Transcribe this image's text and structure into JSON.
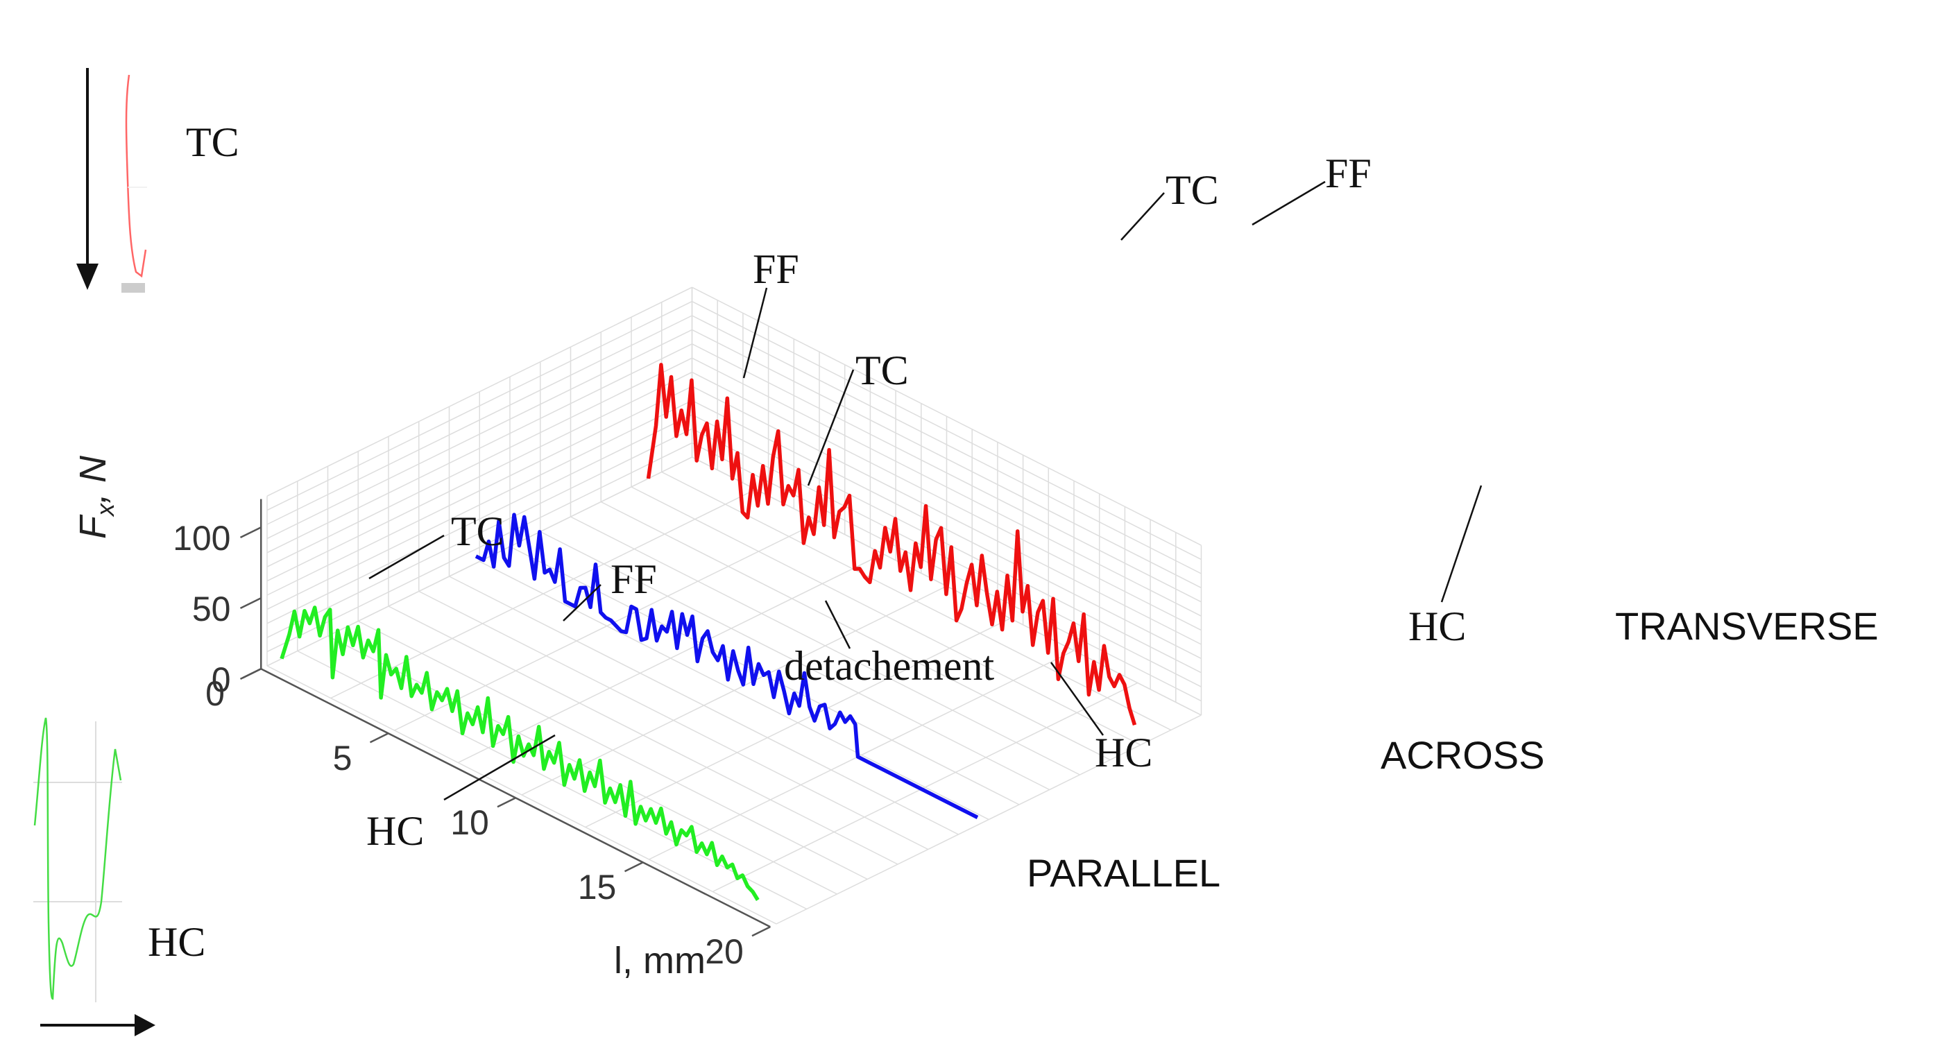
{
  "chart_data": {
    "type": "line",
    "projection": "3d-waterfall",
    "xlabel": "l, mm",
    "ylabel": "F",
    "ylabel_subscript": "x",
    "ylabel_unit": ", N",
    "x_ticks": [
      "0",
      "5",
      "10",
      "15",
      "20"
    ],
    "y_ticks": [
      "0",
      "50",
      "100"
    ],
    "xlim": [
      0,
      20
    ],
    "ylim": [
      0,
      120
    ],
    "grid": true,
    "series": [
      {
        "name": "PARALLEL",
        "color": "#22ee22",
        "x": [
          0.0,
          0.3,
          0.5,
          0.7,
          0.9,
          1.1,
          1.3,
          1.5,
          1.7,
          1.9,
          2.0,
          2.2,
          2.4,
          2.6,
          2.8,
          3.0,
          3.2,
          3.4,
          3.6,
          3.8,
          3.9,
          4.1,
          4.3,
          4.5,
          4.7,
          4.9,
          5.1,
          5.3,
          5.5,
          5.7,
          5.9,
          6.1,
          6.3,
          6.5,
          6.7,
          6.9,
          7.1,
          7.3,
          7.5,
          7.7,
          7.9,
          8.1,
          8.3,
          8.5,
          8.7,
          8.9,
          9.1,
          9.3,
          9.5,
          9.7,
          9.9,
          10.1,
          10.3,
          10.5,
          10.7,
          10.9,
          11.1,
          11.3,
          11.5,
          11.7,
          11.9,
          12.1,
          12.3,
          12.5,
          12.7,
          12.9,
          13.1,
          13.3,
          13.5,
          13.7,
          13.9,
          14.1,
          14.3,
          14.5,
          14.7,
          14.9,
          15.1,
          15.3,
          15.5,
          15.7,
          15.9,
          16.1,
          16.3,
          16.5,
          16.7,
          16.9,
          17.1,
          17.3,
          17.5,
          17.7,
          17.9,
          18.1,
          18.3,
          18.5,
          18.7
        ],
        "values": [
          0,
          20,
          38,
          22,
          42,
          35,
          48,
          30,
          45,
          52,
          5,
          40,
          25,
          46,
          35,
          50,
          30,
          44,
          38,
          55,
          8,
          40,
          28,
          34,
          22,
          46,
          20,
          30,
          26,
          42,
          18,
          32,
          28,
          38,
          24,
          40,
          12,
          28,
          22,
          36,
          20,
          46,
          14,
          30,
          26,
          40,
          10,
          30,
          18,
          28,
          22,
          44,
          16,
          30,
          24,
          40,
          12,
          28,
          20,
          35,
          15,
          30,
          22,
          42,
          14,
          26,
          18,
          32,
          12,
          38,
          10,
          24,
          16,
          26,
          18,
          30,
          14,
          24,
          10,
          22,
          20,
          28,
          12,
          20,
          14,
          24,
          10,
          18,
          12,
          16,
          8,
          12,
          6,
          4,
          0
        ]
      },
      {
        "name": "ACROSS",
        "color": "#1010ee",
        "x": [
          0.0,
          0.3,
          0.5,
          0.7,
          0.9,
          1.1,
          1.3,
          1.5,
          1.7,
          1.9,
          2.1,
          2.3,
          2.5,
          2.7,
          2.9,
          3.1,
          3.3,
          3.5,
          3.7,
          3.9,
          4.1,
          4.3,
          4.5,
          4.7,
          4.9,
          5.1,
          5.3,
          5.5,
          5.7,
          5.9,
          6.1,
          6.3,
          6.5,
          6.7,
          6.9,
          7.1,
          7.3,
          7.5,
          7.7,
          7.9,
          8.1,
          8.3,
          8.5,
          8.7,
          8.9,
          9.1,
          9.3,
          9.5,
          9.7,
          9.9,
          10.1,
          10.3,
          10.5,
          10.7,
          10.9,
          11.1,
          11.3,
          11.5,
          11.7,
          11.9,
          12.1,
          12.3,
          12.5,
          12.7,
          12.9,
          13.1,
          13.3,
          13.5,
          13.7,
          13.9,
          14.1,
          14.3,
          14.5,
          14.7,
          14.9,
          15.0,
          15.5,
          16.0,
          17.0,
          18.0,
          19.0,
          19.7
        ],
        "values": [
          5,
          5,
          20,
          4,
          38,
          14,
          10,
          48,
          28,
          50,
          30,
          10,
          45,
          18,
          22,
          15,
          40,
          5,
          5,
          5,
          20,
          22,
          10,
          42,
          10,
          8,
          8,
          6,
          4,
          5,
          25,
          25,
          5,
          8,
          30,
          10,
          22,
          20,
          36,
          12,
          38,
          25,
          40,
          10,
          28,
          35,
          22,
          18,
          30,
          8,
          30,
          18,
          10,
          38,
          14,
          30,
          24,
          28,
          12,
          32,
          20,
          6,
          22,
          15,
          40,
          18,
          10,
          22,
          25,
          10,
          15,
          25,
          20,
          26,
          22,
          0,
          0,
          0,
          0,
          0,
          0,
          0
        ]
      },
      {
        "name": "TRANSVERSE",
        "color": "#ee1010",
        "x": [
          0.0,
          0.3,
          0.5,
          0.7,
          0.9,
          1.1,
          1.3,
          1.5,
          1.7,
          1.9,
          2.1,
          2.3,
          2.5,
          2.7,
          2.9,
          3.1,
          3.3,
          3.5,
          3.7,
          3.9,
          4.1,
          4.3,
          4.5,
          4.7,
          4.9,
          5.1,
          5.3,
          5.5,
          5.7,
          5.9,
          6.1,
          6.3,
          6.5,
          6.7,
          6.9,
          7.1,
          7.3,
          7.5,
          7.7,
          7.9,
          8.1,
          8.3,
          8.5,
          8.7,
          8.9,
          9.1,
          9.3,
          9.5,
          9.7,
          9.9,
          10.1,
          10.3,
          10.5,
          10.7,
          10.9,
          11.1,
          11.3,
          11.5,
          11.7,
          11.9,
          12.1,
          12.3,
          12.5,
          12.7,
          12.9,
          13.1,
          13.3,
          13.5,
          13.7,
          13.9,
          14.1,
          14.3,
          14.5,
          14.7,
          14.9,
          15.1,
          15.3,
          15.5,
          15.7,
          15.9,
          16.1,
          16.3,
          16.5,
          16.7,
          16.9,
          17.1,
          17.3,
          17.5,
          17.7,
          17.9,
          18.1,
          18.3,
          18.5,
          18.7,
          18.9,
          19.1
        ],
        "values": [
          0,
          40,
          85,
          50,
          80,
          40,
          60,
          45,
          85,
          30,
          50,
          60,
          30,
          65,
          40,
          85,
          30,
          50,
          10,
          8,
          40,
          20,
          50,
          25,
          60,
          80,
          30,
          45,
          40,
          60,
          10,
          30,
          20,
          55,
          30,
          85,
          25,
          45,
          50,
          60,
          10,
          12,
          8,
          6,
          30,
          20,
          50,
          35,
          60,
          25,
          40,
          15,
          50,
          35,
          80,
          30,
          60,
          70,
          25,
          60,
          10,
          20,
          40,
          55,
          28,
          65,
          40,
          20,
          45,
          20,
          60,
          30,
          95,
          40,
          60,
          20,
          45,
          55,
          20,
          60,
          5,
          25,
          35,
          50,
          25,
          60,
          5,
          30,
          12,
          45,
          25,
          20,
          30,
          25,
          10,
          0
        ]
      }
    ],
    "annotations": [
      "TC",
      "FF",
      "TC",
      "FF",
      "TC",
      "FF",
      "detachement",
      "HC",
      "HC",
      "HC"
    ],
    "inset_labels": {
      "top": "TC",
      "bottom": "HC"
    }
  }
}
